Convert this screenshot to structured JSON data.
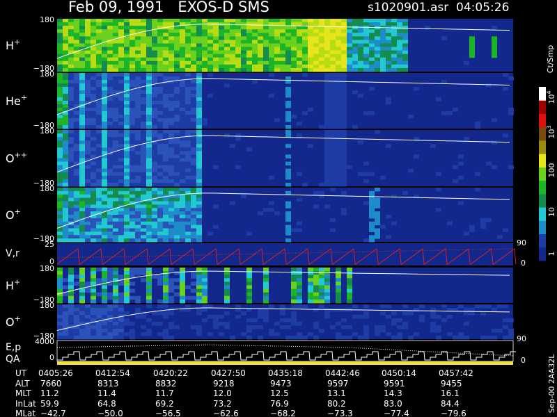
{
  "header": {
    "title": "Feb 09, 1991   EXOS-D SMS",
    "file": "s1020901.asr  04:05:26"
  },
  "panels": [
    {
      "label": "H",
      "sup": "+",
      "top": "180",
      "bottom": "−180"
    },
    {
      "label": "He",
      "sup": "+",
      "top": "180",
      "bottom": "−180"
    },
    {
      "label": "O",
      "sup": "++",
      "top": "180",
      "bottom": "−180"
    },
    {
      "label": "O",
      "sup": "+",
      "top": "180",
      "bottom": "−180"
    },
    {
      "label": "H",
      "sup": "+",
      "top": "180",
      "bottom": "−180"
    },
    {
      "label": "O",
      "sup": "+",
      "top": "180",
      "bottom": "−180"
    }
  ],
  "vr": {
    "label": "V,r",
    "top": "25",
    "bottom": "0",
    "right_top": "90",
    "right_bottom": "0"
  },
  "ep": {
    "label": "E,p",
    "label2": "QA",
    "top": "4000",
    "bottom": "0",
    "right_top": "90",
    "right_bottom": "0"
  },
  "colorbar": {
    "unit": "Ct/Smp",
    "ticks": [
      {
        "text": "10",
        "sup": "4"
      },
      {
        "text": "10",
        "sup": "3"
      },
      {
        "text": "100"
      },
      {
        "text": "10"
      },
      {
        "text": "1"
      }
    ]
  },
  "footer": {
    "rows": [
      {
        "label": "UT",
        "values": [
          "0405:26",
          "0412:54",
          "0420:22",
          "0427:50",
          "0435:18",
          "0442:46",
          "0450:14",
          "0457:42"
        ]
      },
      {
        "label": "ALT",
        "values": [
          "7660",
          "8313",
          "8832",
          "9218",
          "9473",
          "9597",
          "9591",
          "9455"
        ]
      },
      {
        "label": "MLT",
        "values": [
          "11.2",
          "11.4",
          "11.7",
          "12.0",
          "12.5",
          "13.1",
          "14.3",
          "16.1"
        ]
      },
      {
        "label": "InLat",
        "values": [
          "59.9",
          "64.8",
          "69.2",
          "73.2",
          "76.9",
          "80.2",
          "83.0",
          "84.4"
        ]
      },
      {
        "label": "MLat",
        "values": [
          "−42.7",
          "−50.0",
          "−56.5",
          "−62.6",
          "−68.2",
          "−73.3",
          "−77.4",
          "−79.6"
        ]
      }
    ]
  },
  "stamp": "Sep-00 2AA32L"
}
